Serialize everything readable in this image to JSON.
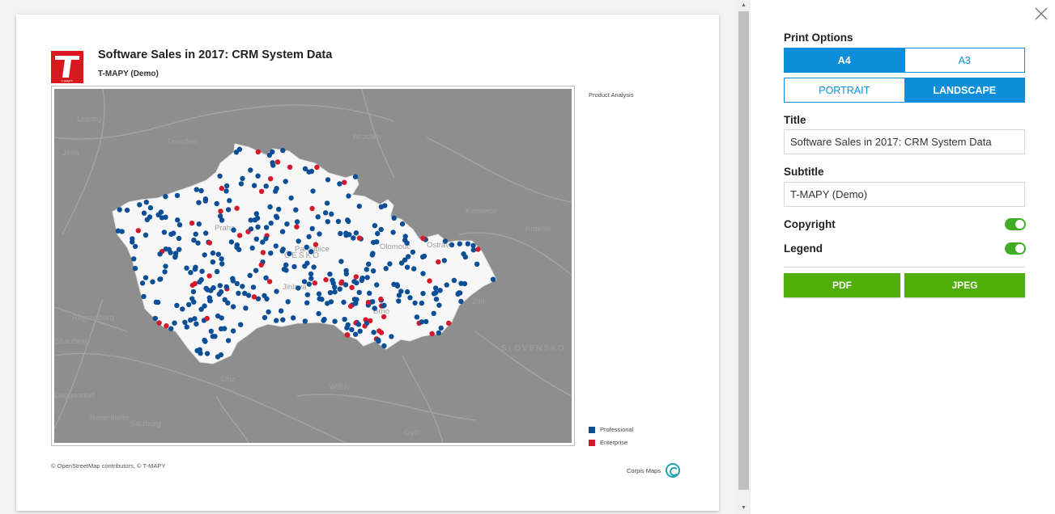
{
  "document": {
    "title": "Software Sales in 2017: CRM System Data",
    "subtitle": "T-MAPY (Demo)",
    "logo_text": "T-MAPY",
    "legend": {
      "title": "Product Analysis",
      "items": [
        {
          "label": "Professional",
          "color": "#0c4f96"
        },
        {
          "label": "Enterprise",
          "color": "#d41a2a"
        }
      ]
    },
    "copyright": "© OpenStreetMap contributors, © T-MAPY",
    "credit": "Corpis Maps",
    "map_labels": [
      "Leipzig",
      "Dresden",
      "Jena",
      "Wroclaw",
      "Katowice",
      "Kraków",
      "Praha",
      "ČESKO",
      "Jihlava",
      "Pardubice",
      "Olomouc",
      "Ostrava",
      "Zlín",
      "Brno",
      "Regensburg",
      "Straubing",
      "Linz",
      "WIEN",
      "SLOVENSKO",
      "Salzburg",
      "Rosenheim",
      "Győr",
      "Deggendorf"
    ]
  },
  "panel": {
    "print_options_label": "Print Options",
    "paper": {
      "options": [
        "A4",
        "A3"
      ],
      "selected": "A4"
    },
    "orientation": {
      "options": [
        "PORTRAIT",
        "LANDSCAPE"
      ],
      "selected": "LANDSCAPE"
    },
    "title_label": "Title",
    "title_value": "Software Sales in 2017: CRM System Data",
    "subtitle_label": "Subtitle",
    "subtitle_value": "T-MAPY (Demo)",
    "copyright_label": "Copyright",
    "copyright_on": true,
    "legend_label": "Legend",
    "legend_on": true,
    "pdf_label": "PDF",
    "jpeg_label": "JPEG"
  },
  "icons": {
    "close": "close-icon",
    "scroll_up": "scroll-up-arrow",
    "scroll_down": "scroll-down-arrow"
  }
}
